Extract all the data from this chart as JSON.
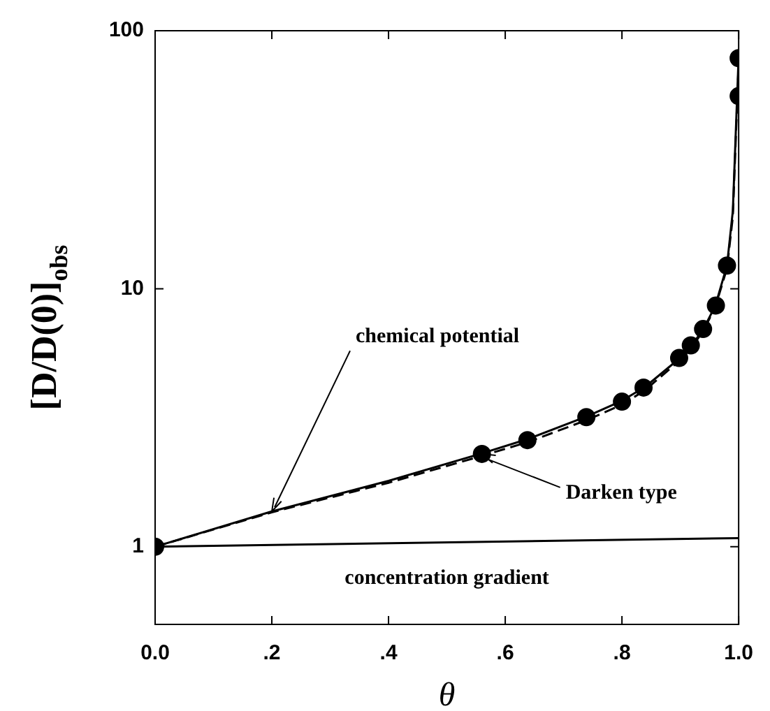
{
  "chart_data": {
    "type": "line",
    "xlabel": "θ",
    "ylabel": "[D/D(0)]$_{obs}$",
    "xlim": [
      0,
      1
    ],
    "ylim": [
      0.5,
      100
    ],
    "log": "y",
    "grid": false,
    "legend": false,
    "xticks": [
      {
        "value": 0,
        "label": "0.0"
      },
      {
        "value": 0.2,
        "label": ".2"
      },
      {
        "value": 0.4,
        "label": ".4"
      },
      {
        "value": 0.6,
        "label": ".6"
      },
      {
        "value": 0.8,
        "label": ".8"
      },
      {
        "value": 1,
        "label": "1.0"
      }
    ],
    "yticks": [
      1,
      10,
      100
    ],
    "series": [
      {
        "type": "line",
        "color": "#000000",
        "marker": "none",
        "line_style": "solid",
        "x": [
          0,
          0.2,
          0.4,
          0.56,
          0.64,
          0.74,
          0.8,
          0.84,
          0.9,
          0.92,
          0.94,
          0.96,
          0.98,
          0.99,
          1.0
        ],
        "values": [
          1,
          1.37,
          1.8,
          2.3,
          2.62,
          3.2,
          3.68,
          4.17,
          5.4,
          6.05,
          7.0,
          8.6,
          12.3,
          20,
          80
        ]
      },
      {
        "type": "line",
        "color": "#000000",
        "marker": "none",
        "line_style": "dashed",
        "x": [
          0,
          0.2,
          0.4,
          0.56,
          0.64,
          0.74,
          0.8,
          0.84,
          0.9,
          0.92,
          0.94,
          0.96,
          0.98,
          0.99,
          1.0
        ],
        "values": [
          1,
          1.36,
          1.77,
          2.25,
          2.55,
          3.1,
          3.55,
          4.05,
          5.3,
          5.95,
          6.9,
          8.5,
          12.0,
          19,
          75
        ]
      },
      {
        "type": "line",
        "color": "#000000",
        "marker": "none",
        "line_style": "solid",
        "x": [
          0,
          1
        ],
        "values": [
          1,
          1.08
        ]
      },
      {
        "type": "scatter",
        "color": "#000000",
        "marker": "circle",
        "x": [
          0,
          0.56,
          0.638,
          0.739,
          0.8,
          0.837,
          0.898,
          0.918,
          0.939,
          0.961,
          0.98,
          1.0,
          1.0
        ],
        "values": [
          1,
          2.29,
          2.59,
          3.18,
          3.65,
          4.14,
          5.39,
          6.03,
          6.98,
          8.61,
          12.3,
          55.8,
          78.3
        ]
      }
    ],
    "annotations": [
      {
        "text": "chemical potential",
        "x": 0.2,
        "y": 1.37
      },
      {
        "text": "Darken type",
        "x": 0.56,
        "y": 2.29
      },
      {
        "text": "concentration gradient",
        "x": 0.5,
        "y": 1.04
      }
    ]
  }
}
